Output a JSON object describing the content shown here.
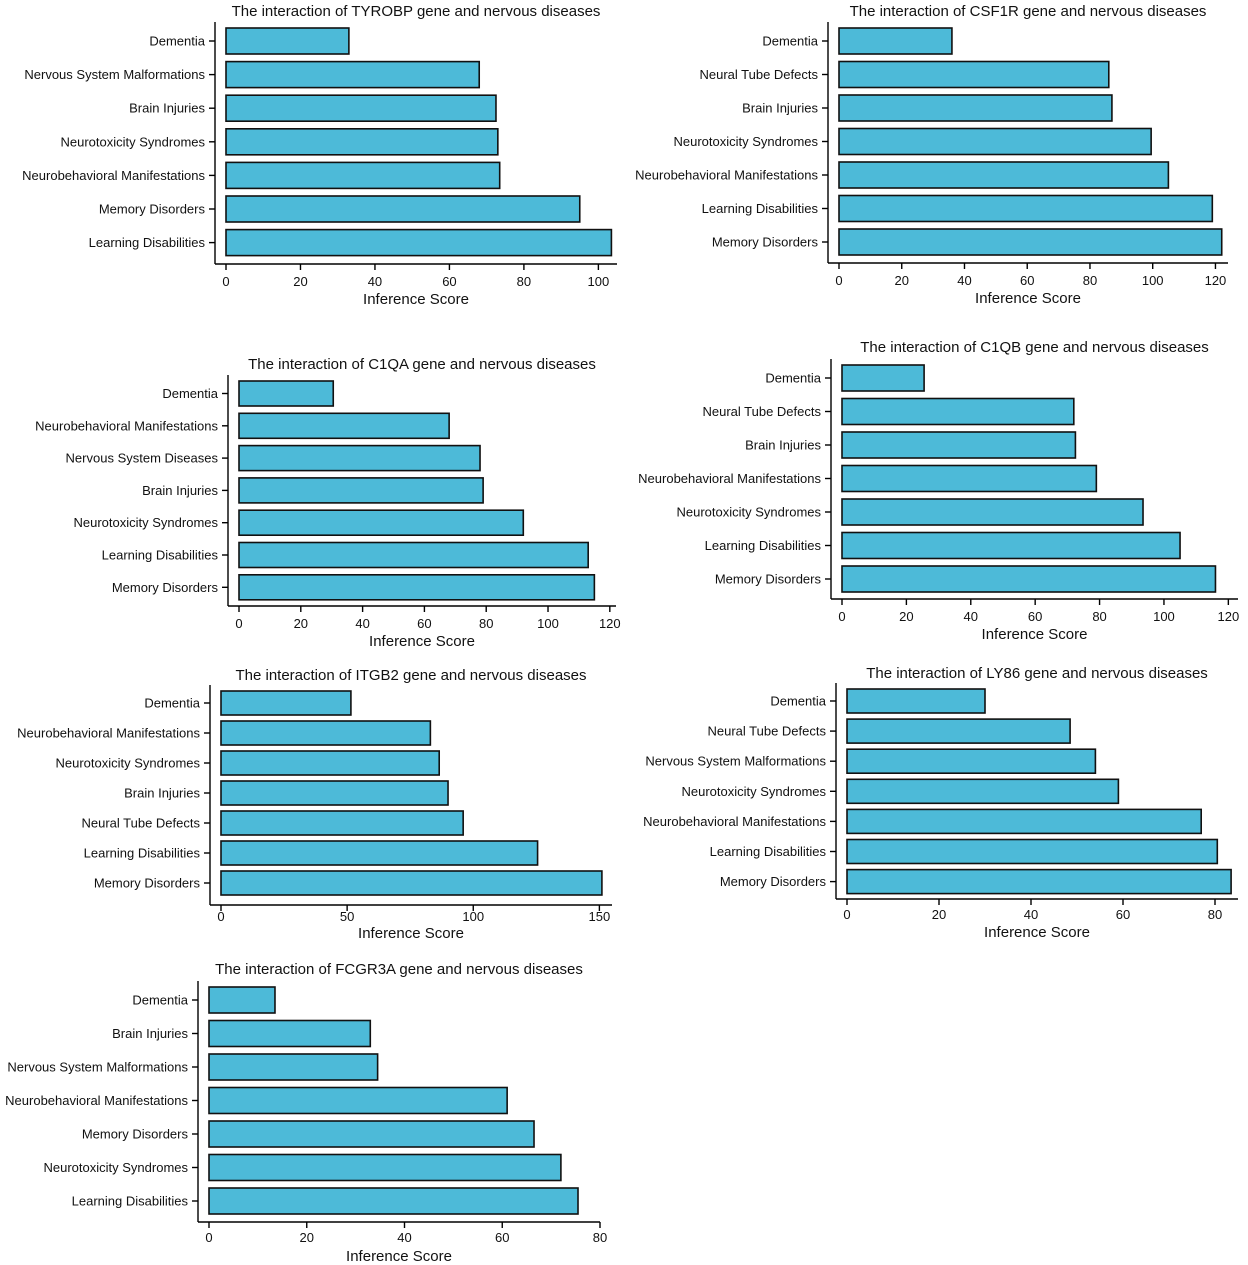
{
  "bar_color": "#4dbad8",
  "chart_data": [
    {
      "type": "bar",
      "orientation": "horizontal",
      "title": "The interaction of TYROBP gene and nervous diseases",
      "xlabel": "Inference Score",
      "ylabel": "",
      "categories": [
        "Dementia",
        "Nervous System Malformations",
        "Brain Injuries",
        "Neurotoxicity Syndromes",
        "Neurobehavioral Manifestations",
        "Memory Disorders",
        "Learning Disabilities"
      ],
      "values": [
        33,
        68,
        72.5,
        73,
        73.5,
        95,
        103.5
      ],
      "xlim": [
        0,
        105
      ],
      "xticks": [
        0,
        20,
        40,
        60,
        80,
        100
      ]
    },
    {
      "type": "bar",
      "orientation": "horizontal",
      "title": "The interaction of CSF1R gene and nervous diseases",
      "xlabel": "Inference Score",
      "ylabel": "",
      "categories": [
        "Dementia",
        "Neural Tube Defects",
        "Brain Injuries",
        "Neurotoxicity Syndromes",
        "Neurobehavioral Manifestations",
        "Learning Disabilities",
        "Memory Disorders"
      ],
      "values": [
        36,
        86,
        87,
        99.5,
        105,
        119,
        122
      ],
      "xlim": [
        0,
        124
      ],
      "xticks": [
        0,
        20,
        40,
        60,
        80,
        100,
        120
      ]
    },
    {
      "type": "bar",
      "orientation": "horizontal",
      "title": "The interaction of C1QA gene and nervous diseases",
      "xlabel": "Inference Score",
      "ylabel": "",
      "categories": [
        "Dementia",
        "Neurobehavioral Manifestations",
        "Nervous System Diseases",
        "Brain Injuries",
        "Neurotoxicity Syndromes",
        "Learning Disabilities",
        "Memory Disorders"
      ],
      "values": [
        30.5,
        68,
        78,
        79,
        92,
        113,
        115
      ],
      "xlim": [
        0,
        122
      ],
      "xticks": [
        0,
        20,
        40,
        60,
        80,
        100,
        120
      ]
    },
    {
      "type": "bar",
      "orientation": "horizontal",
      "title": "The interaction of C1QB gene and nervous diseases",
      "xlabel": "Inference Score",
      "ylabel": "",
      "categories": [
        "Dementia",
        "Neural Tube Defects",
        "Brain Injuries",
        "Neurobehavioral Manifestations",
        "Neurotoxicity Syndromes",
        "Learning Disabilities",
        "Memory Disorders"
      ],
      "values": [
        25.5,
        72,
        72.5,
        79,
        93.5,
        105,
        116
      ],
      "xlim": [
        0,
        123
      ],
      "xticks": [
        0,
        20,
        40,
        60,
        80,
        100,
        120
      ]
    },
    {
      "type": "bar",
      "orientation": "horizontal",
      "title": "The interaction of ITGB2 gene and nervous diseases",
      "xlabel": "Inference Score",
      "ylabel": "",
      "categories": [
        "Dementia",
        "Neurobehavioral Manifestations",
        "Neurotoxicity Syndromes",
        "Brain Injuries",
        "Neural Tube Defects",
        "Learning Disabilities",
        "Memory Disorders"
      ],
      "values": [
        51.5,
        83,
        86.5,
        90,
        96,
        125.5,
        151
      ],
      "xlim": [
        0,
        155
      ],
      "xticks": [
        0,
        50,
        100,
        150
      ]
    },
    {
      "type": "bar",
      "orientation": "horizontal",
      "title": "The interaction of LY86 gene and nervous diseases",
      "xlabel": "Inference Score",
      "ylabel": "",
      "categories": [
        "Dementia",
        "Neural Tube Defects",
        "Nervous System Malformations",
        "Neurotoxicity Syndromes",
        "Neurobehavioral Manifestations",
        "Learning Disabilities",
        "Memory Disorders"
      ],
      "values": [
        30,
        48.5,
        54,
        59,
        77,
        80.5,
        83.5
      ],
      "xlim": [
        0,
        85
      ],
      "xticks": [
        0,
        20,
        40,
        60,
        80
      ]
    },
    {
      "type": "bar",
      "orientation": "horizontal",
      "title": "The interaction of FCGR3A gene and nervous diseases",
      "xlabel": "Inference Score",
      "ylabel": "",
      "categories": [
        "Dementia",
        "Brain Injuries",
        "Nervous System Malformations",
        "Neurobehavioral Manifestations",
        "Memory Disorders",
        "Neurotoxicity Syndromes",
        "Learning Disabilities"
      ],
      "values": [
        13.5,
        33,
        34.5,
        61,
        66.5,
        72,
        75.5
      ],
      "xlim": [
        0,
        80
      ],
      "xticks": [
        0,
        20,
        40,
        60,
        80
      ]
    }
  ]
}
